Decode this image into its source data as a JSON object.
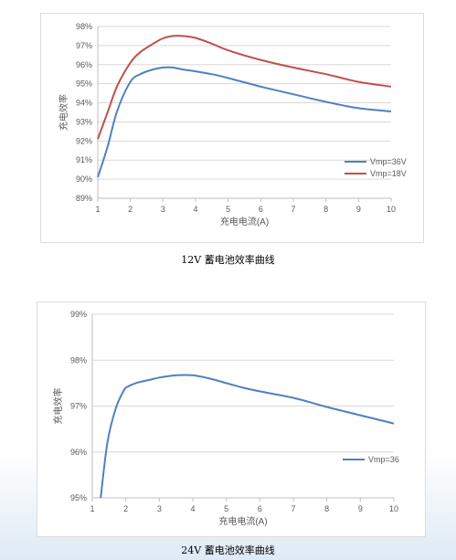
{
  "captions": {
    "chart1": "12V 蓄电池效率曲线",
    "chart2": "24V 蓄电池效率曲线"
  },
  "colors": {
    "blue": "#4f81bd",
    "red": "#c0504d",
    "grid": "#d9d9d9",
    "axis": "#bfbfbf",
    "text": "#595959"
  },
  "chart_data": [
    {
      "type": "line",
      "title": "",
      "xlabel": "充电电流(A)",
      "ylabel": "充电效率",
      "xlim": [
        1,
        10
      ],
      "ylim": [
        89,
        98
      ],
      "xticks": [
        1,
        2,
        3,
        4,
        5,
        6,
        7,
        8,
        9,
        10
      ],
      "yticks": [
        "89%",
        "90%",
        "91%",
        "92%",
        "93%",
        "94%",
        "95%",
        "96%",
        "97%",
        "98%"
      ],
      "grid": "horizontal",
      "legend_position": "right",
      "series": [
        {
          "name": "Vmp=36V",
          "color": "#4f81bd",
          "x": [
            1.0,
            1.3,
            1.6,
            2.0,
            2.3,
            2.7,
            3.0,
            3.3,
            3.6,
            4.0,
            4.5,
            5.0,
            6.0,
            7.0,
            8.0,
            9.0,
            10.0
          ],
          "y": [
            90.1,
            91.7,
            93.6,
            95.1,
            95.5,
            95.75,
            95.85,
            95.85,
            95.75,
            95.65,
            95.5,
            95.3,
            94.85,
            94.45,
            94.05,
            93.72,
            93.55
          ]
        },
        {
          "name": "Vmp=18V",
          "color": "#c0504d",
          "x": [
            1.0,
            1.3,
            1.6,
            2.0,
            2.3,
            2.7,
            3.0,
            3.3,
            3.6,
            4.0,
            4.5,
            5.0,
            6.0,
            7.0,
            8.0,
            9.0,
            10.0
          ],
          "y": [
            92.1,
            93.5,
            94.9,
            96.1,
            96.65,
            97.1,
            97.38,
            97.5,
            97.5,
            97.4,
            97.1,
            96.75,
            96.25,
            95.85,
            95.5,
            95.1,
            94.85
          ]
        }
      ]
    },
    {
      "type": "line",
      "title": "",
      "xlabel": "充电电流(A)",
      "ylabel": "充电效率",
      "xlim": [
        1,
        10
      ],
      "ylim": [
        95,
        99
      ],
      "xticks": [
        1,
        2,
        3,
        4,
        5,
        6,
        7,
        8,
        9,
        10
      ],
      "yticks": [
        "95%",
        "96%",
        "97%",
        "98%",
        "99%"
      ],
      "grid": "horizontal",
      "legend_position": "right",
      "series": [
        {
          "name": "Vmp=36",
          "color": "#4f81bd",
          "x": [
            1.25,
            1.45,
            1.7,
            1.95,
            2.05,
            2.3,
            2.7,
            3.0,
            3.5,
            4.0,
            4.5,
            5.0,
            5.5,
            6.0,
            7.0,
            8.0,
            9.0,
            10.0
          ],
          "y": [
            95.0,
            96.2,
            96.95,
            97.35,
            97.42,
            97.5,
            97.57,
            97.62,
            97.67,
            97.67,
            97.6,
            97.5,
            97.4,
            97.32,
            97.18,
            96.98,
            96.8,
            96.62
          ]
        }
      ]
    }
  ]
}
